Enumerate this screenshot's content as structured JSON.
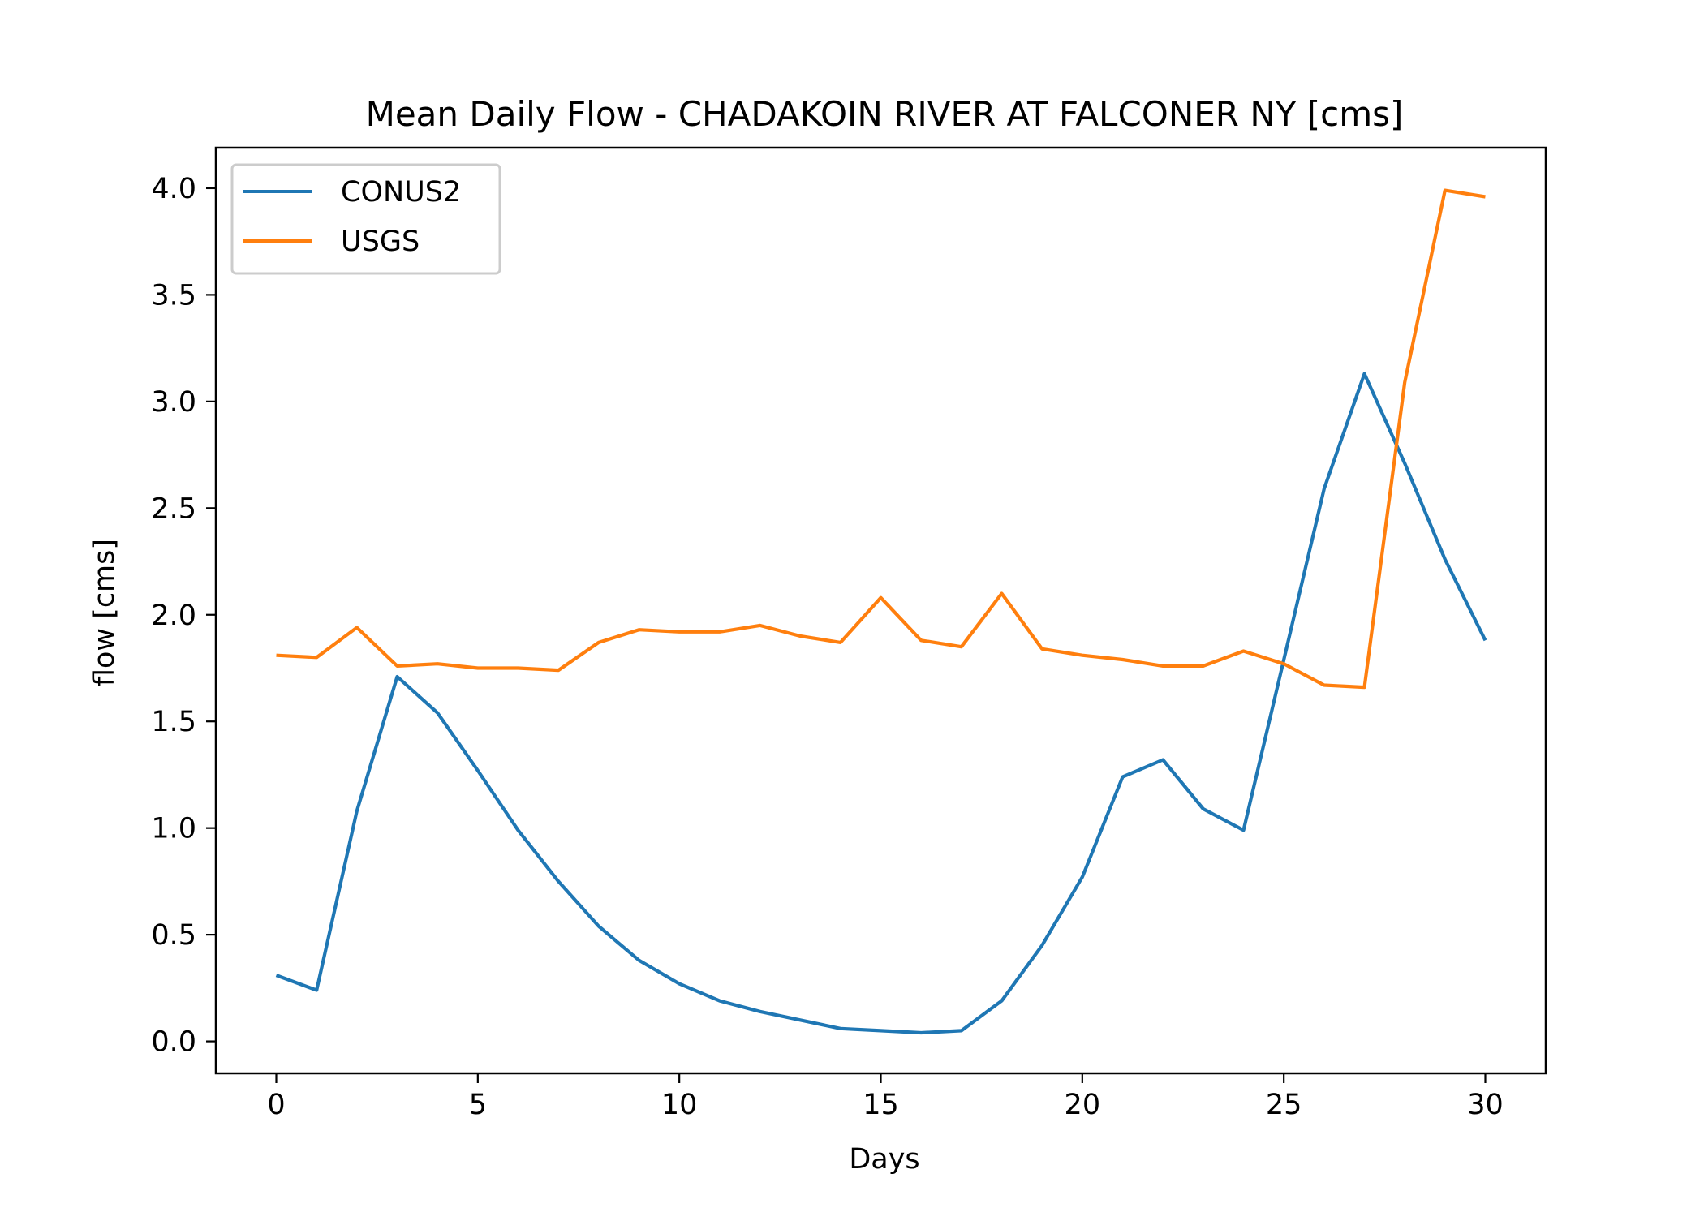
{
  "chart_data": {
    "type": "line",
    "title": "Mean Daily Flow - CHADAKOIN RIVER AT FALCONER NY [cms]",
    "xlabel": "Days",
    "ylabel": "flow [cms]",
    "xlim": [
      -1.5,
      31.5
    ],
    "ylim": [
      -0.15,
      4.19
    ],
    "xticks": [
      0,
      5,
      10,
      15,
      20,
      25,
      30
    ],
    "yticks": [
      0.0,
      0.5,
      1.0,
      1.5,
      2.0,
      2.5,
      3.0,
      3.5,
      4.0
    ],
    "xtick_labels": [
      "0",
      "5",
      "10",
      "15",
      "20",
      "25",
      "30"
    ],
    "ytick_labels": [
      "0.0",
      "0.5",
      "1.0",
      "1.5",
      "2.0",
      "2.5",
      "3.0",
      "3.5",
      "4.0"
    ],
    "grid": false,
    "legend_position": "upper-left",
    "x": [
      0,
      1,
      2,
      3,
      4,
      5,
      6,
      7,
      8,
      9,
      10,
      11,
      12,
      13,
      14,
      15,
      16,
      17,
      18,
      19,
      20,
      21,
      22,
      23,
      24,
      25,
      26,
      27,
      28,
      29,
      30
    ],
    "series": [
      {
        "name": "CONUS2",
        "color": "#1f77b4",
        "values": [
          0.31,
          0.24,
          1.08,
          1.71,
          1.54,
          1.27,
          0.99,
          0.75,
          0.54,
          0.38,
          0.27,
          0.19,
          0.14,
          0.1,
          0.06,
          0.05,
          0.04,
          0.05,
          0.19,
          0.45,
          0.77,
          1.24,
          1.32,
          1.09,
          0.99,
          1.79,
          2.59,
          3.13,
          2.71,
          2.26,
          1.88
        ]
      },
      {
        "name": "USGS",
        "color": "#ff7f0e",
        "values": [
          1.81,
          1.8,
          1.94,
          1.76,
          1.77,
          1.75,
          1.75,
          1.74,
          1.87,
          1.93,
          1.92,
          1.92,
          1.95,
          1.9,
          1.87,
          2.08,
          1.88,
          1.85,
          2.1,
          1.84,
          1.81,
          1.79,
          1.76,
          1.76,
          1.83,
          1.77,
          1.67,
          1.66,
          3.09,
          3.99,
          3.96
        ]
      }
    ]
  }
}
